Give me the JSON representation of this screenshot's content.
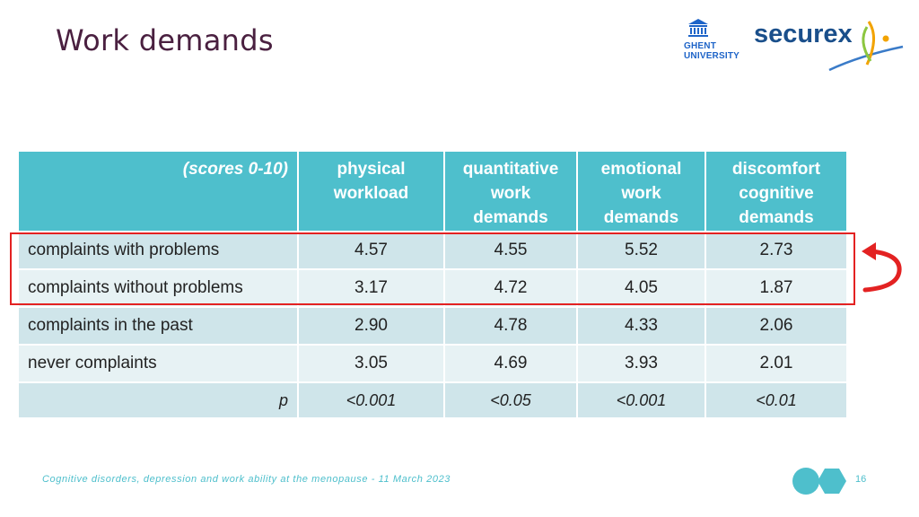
{
  "slide": {
    "title": "Work demands",
    "footer": "Cognitive disorders, depression and work ability at the menopause  -  11 March 2023",
    "page_number": "16"
  },
  "logos": {
    "ghent_line1": "GHENT",
    "ghent_line2": "UNIVERSITY",
    "securex": "securex"
  },
  "table": {
    "corner": "(scores 0-10)",
    "headers": [
      [
        "physical",
        "workload"
      ],
      [
        "quantitative",
        "work",
        "demands"
      ],
      [
        "emotional",
        "work",
        "demands"
      ],
      [
        "discomfort",
        "cognitive",
        "demands"
      ]
    ],
    "rows": [
      {
        "label": "complaints with problems",
        "values": [
          "4.57",
          "4.55",
          "5.52",
          "2.73"
        ]
      },
      {
        "label": "complaints without problems",
        "values": [
          "3.17",
          "4.72",
          "4.05",
          "1.87"
        ]
      },
      {
        "label": "complaints in the past",
        "values": [
          "2.90",
          "4.78",
          "4.33",
          "2.06"
        ]
      },
      {
        "label": "never complaints",
        "values": [
          "3.05",
          "4.69",
          "3.93",
          "2.01"
        ]
      }
    ],
    "p_label": "p",
    "p_values": [
      "<0.001",
      "<0.05",
      "<0.001",
      "<0.01"
    ]
  },
  "colors": {
    "title": "#4a2040",
    "header_bg": "#4ebfcc",
    "row_dark": "#cfe5ea",
    "row_light": "#e7f2f4",
    "highlight": "#e32222",
    "accent": "#4ebfcc"
  },
  "icons": [
    "ghent-university-logo",
    "securex-logo",
    "swap-arrow-icon"
  ]
}
